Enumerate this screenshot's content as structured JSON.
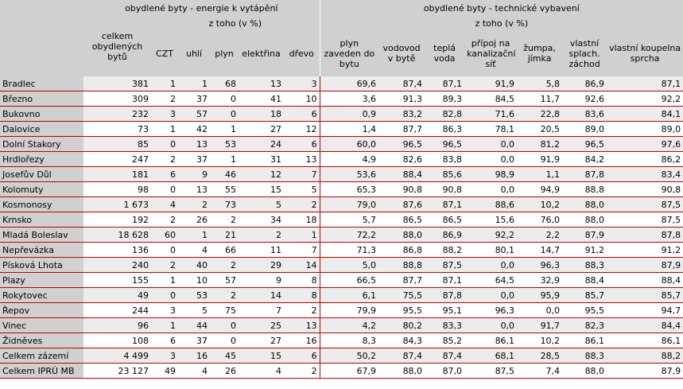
{
  "header": {
    "group_energy": "obydlené byty - energie k vytápění",
    "group_tech": "obydlené byty - technické vybavení",
    "sub_of_which_energy": "z toho (v %)",
    "sub_of_which_tech": "z toho (v %)",
    "columns": [
      "celkem obydlených bytů",
      "CZT",
      "uhlí",
      "plyn",
      "elektřina",
      "dřevo",
      "plyn zaveden do bytu",
      "vodovod v bytě",
      "teplá voda",
      "přípoj na kanalizační síť",
      "žumpa, jímka",
      "vlastní splach. záchod",
      "vlastní koupelna sprcha"
    ]
  },
  "rows": [
    {
      "name": "Bradlec",
      "v": [
        "381",
        "1",
        "1",
        "68",
        "13",
        "3",
        "69,6",
        "87,4",
        "87,1",
        "91,9",
        "5,8",
        "86,9",
        "87,1"
      ]
    },
    {
      "name": "Březno",
      "v": [
        "309",
        "2",
        "37",
        "0",
        "41",
        "10",
        "3,6",
        "91,3",
        "89,3",
        "84,5",
        "11,7",
        "92,6",
        "92,2"
      ]
    },
    {
      "name": "Bukovno",
      "v": [
        "232",
        "3",
        "57",
        "0",
        "18",
        "6",
        "0,9",
        "83,2",
        "82,8",
        "71,6",
        "22,8",
        "83,6",
        "84,1"
      ]
    },
    {
      "name": "Dalovice",
      "v": [
        "73",
        "1",
        "42",
        "1",
        "27",
        "12",
        "1,4",
        "87,7",
        "86,3",
        "78,1",
        "20,5",
        "89,0",
        "89,0"
      ]
    },
    {
      "name": "Dolní Stakory",
      "v": [
        "85",
        "0",
        "13",
        "53",
        "24",
        "6",
        "60,0",
        "96,5",
        "96,5",
        "0,0",
        "81,2",
        "96,5",
        "97,6"
      ]
    },
    {
      "name": "Hrdlořezy",
      "v": [
        "247",
        "2",
        "37",
        "1",
        "31",
        "13",
        "4,9",
        "82,6",
        "83,8",
        "0,0",
        "91,9",
        "84,2",
        "86,2"
      ]
    },
    {
      "name": "Josefův Důl",
      "v": [
        "181",
        "6",
        "9",
        "46",
        "12",
        "7",
        "53,6",
        "88,4",
        "85,6",
        "98,9",
        "1,1",
        "87,8",
        "83,4"
      ]
    },
    {
      "name": "Kolomuty",
      "v": [
        "98",
        "0",
        "13",
        "55",
        "15",
        "5",
        "65,3",
        "90,8",
        "90,8",
        "0,0",
        "94,9",
        "88,8",
        "90,8"
      ]
    },
    {
      "name": "Kosmonosy",
      "v": [
        "1 673",
        "4",
        "2",
        "73",
        "5",
        "2",
        "79,0",
        "87,6",
        "87,1",
        "88,6",
        "10,2",
        "88,0",
        "87,5"
      ]
    },
    {
      "name": "Krnsko",
      "v": [
        "192",
        "2",
        "26",
        "2",
        "34",
        "18",
        "5,7",
        "86,5",
        "86,5",
        "15,6",
        "76,0",
        "88,0",
        "87,5"
      ]
    },
    {
      "name": "Mladá Boleslav",
      "v": [
        "18 628",
        "60",
        "1",
        "21",
        "2",
        "1",
        "72,2",
        "88,0",
        "86,9",
        "92,2",
        "2,2",
        "87,9",
        "87,8"
      ]
    },
    {
      "name": "Nepřevázka",
      "v": [
        "136",
        "0",
        "4",
        "66",
        "11",
        "7",
        "71,3",
        "86,8",
        "88,2",
        "80,1",
        "14,7",
        "91,2",
        "91,2"
      ]
    },
    {
      "name": "Písková Lhota",
      "v": [
        "240",
        "2",
        "40",
        "2",
        "29",
        "14",
        "5,0",
        "88,8",
        "87,5",
        "0,0",
        "96,3",
        "88,3",
        "87,9"
      ]
    },
    {
      "name": "Plazy",
      "v": [
        "155",
        "1",
        "10",
        "57",
        "9",
        "8",
        "66,5",
        "87,7",
        "87,1",
        "64,5",
        "32,9",
        "88,4",
        "88,4"
      ]
    },
    {
      "name": "Rokytovec",
      "v": [
        "49",
        "0",
        "53",
        "2",
        "14",
        "8",
        "6,1",
        "75,5",
        "87,8",
        "0,0",
        "95,9",
        "85,7",
        "85,7"
      ]
    },
    {
      "name": "Řepov",
      "v": [
        "244",
        "3",
        "5",
        "75",
        "7",
        "2",
        "79,9",
        "95,5",
        "95,1",
        "96,3",
        "0,0",
        "95,5",
        "94,7"
      ]
    },
    {
      "name": "Vinec",
      "v": [
        "96",
        "1",
        "44",
        "0",
        "25",
        "13",
        "4,2",
        "80,2",
        "83,3",
        "0,0",
        "91,7",
        "82,3",
        "84,4"
      ]
    },
    {
      "name": "Židněves",
      "v": [
        "108",
        "6",
        "37",
        "0",
        "27",
        "16",
        "8,3",
        "84,3",
        "85,2",
        "86,1",
        "10,2",
        "86,1",
        "86,1"
      ]
    },
    {
      "name": "Celkem zázemí",
      "v": [
        "4 499",
        "3",
        "16",
        "45",
        "15",
        "6",
        "50,2",
        "87,4",
        "87,4",
        "68,1",
        "28,5",
        "88,3",
        "88,2"
      ]
    },
    {
      "name": "Celkem IPRÚ MB",
      "v": [
        "23 127",
        "49",
        "4",
        "26",
        "4",
        "2",
        "67,9",
        "88,0",
        "87,0",
        "87,5",
        "7,4",
        "88,0",
        "87,9"
      ]
    }
  ]
}
